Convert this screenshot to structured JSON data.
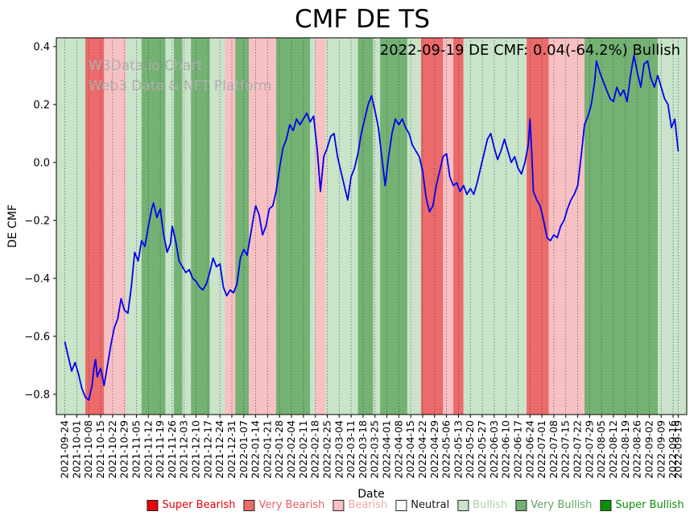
{
  "title": "CMF DE TS",
  "annotation": "2022-09-19 DE CMF: 0.04(-64.2%) Bullish",
  "watermark": {
    "line1": "W3Data.io Chart",
    "line2": "Web3 Data & NFT Platform"
  },
  "axes": {
    "xlabel": "Date",
    "ylabel": "DE CMF"
  },
  "legend": {
    "items": [
      {
        "label": "Super Bearish",
        "color": "#e8000b",
        "text_color": "#e8000b"
      },
      {
        "label": "Very Bearish",
        "color": "#ec6a6a",
        "text_color": "#e66060"
      },
      {
        "label": "Bearish",
        "color": "#f7c0c3",
        "text_color": "#f0a6aa"
      },
      {
        "label": "Neutral",
        "color": "#ffffff",
        "text_color": "#1a1a1a"
      },
      {
        "label": "Bullish",
        "color": "#c9e4c9",
        "text_color": "#abd4ab"
      },
      {
        "label": "Very Bullish",
        "color": "#74b274",
        "text_color": "#5ca65c"
      },
      {
        "label": "Super Bullish",
        "color": "#0a8f0a",
        "text_color": "#0a8f0a"
      }
    ]
  },
  "chart_data": {
    "type": "line",
    "title": "CMF DE TS",
    "xlabel": "Date",
    "ylabel": "DE CMF",
    "ylim": [
      -0.87,
      0.43
    ],
    "yticks": [
      0.4,
      0.2,
      0.0,
      -0.2,
      -0.4,
      -0.6,
      -0.8
    ],
    "x_start": "2021-09-24",
    "x_end": "2022-09-19",
    "x_pad_days": 5,
    "grid": "vertical-dotted",
    "line_color": "#0000ee",
    "xticks": [
      "2021-09-24",
      "2021-10-01",
      "2021-10-08",
      "2021-10-15",
      "2021-10-22",
      "2021-10-29",
      "2021-11-05",
      "2021-11-12",
      "2021-11-19",
      "2021-11-26",
      "2021-12-03",
      "2021-12-10",
      "2021-12-17",
      "2021-12-24",
      "2021-12-31",
      "2022-01-07",
      "2022-01-14",
      "2022-01-21",
      "2022-01-28",
      "2022-02-04",
      "2022-02-11",
      "2022-02-18",
      "2022-02-25",
      "2022-03-04",
      "2022-03-11",
      "2022-03-18",
      "2022-03-25",
      "2022-04-01",
      "2022-04-08",
      "2022-04-15",
      "2022-04-22",
      "2022-04-29",
      "2022-05-06",
      "2022-05-13",
      "2022-05-20",
      "2022-05-27",
      "2022-06-03",
      "2022-06-10",
      "2022-06-17",
      "2022-06-24",
      "2022-07-01",
      "2022-07-08",
      "2022-07-15",
      "2022-07-22",
      "2022-07-29",
      "2022-08-05",
      "2022-08-12",
      "2022-08-19",
      "2022-08-26",
      "2022-09-02",
      "2022-09-09",
      "2022-09-16",
      "2022-09-19"
    ],
    "band_colors": {
      "Super Bearish": "#e8000b",
      "Very Bearish": "#ec6a6a",
      "Bearish": "#f7c0c3",
      "Neutral": "#ffffff",
      "Bullish": "#c9e4c9",
      "Very Bullish": "#74b274",
      "Super Bullish": "#0a8f0a"
    },
    "bands": [
      {
        "start": "2021-09-19",
        "end": "2021-10-06",
        "category": "Bullish"
      },
      {
        "start": "2021-10-06",
        "end": "2021-10-17",
        "category": "Very Bearish"
      },
      {
        "start": "2021-10-17",
        "end": "2021-10-30",
        "category": "Bearish"
      },
      {
        "start": "2021-10-30",
        "end": "2021-11-08",
        "category": "Bullish"
      },
      {
        "start": "2021-11-08",
        "end": "2021-11-22",
        "category": "Very Bullish"
      },
      {
        "start": "2021-11-22",
        "end": "2021-11-27",
        "category": "Bullish"
      },
      {
        "start": "2021-11-27",
        "end": "2021-12-02",
        "category": "Very Bullish"
      },
      {
        "start": "2021-12-02",
        "end": "2021-12-07",
        "category": "Bullish"
      },
      {
        "start": "2021-12-07",
        "end": "2021-12-18",
        "category": "Very Bullish"
      },
      {
        "start": "2021-12-18",
        "end": "2021-12-27",
        "category": "Bullish"
      },
      {
        "start": "2021-12-27",
        "end": "2022-01-02",
        "category": "Bearish"
      },
      {
        "start": "2022-01-02",
        "end": "2022-01-10",
        "category": "Very Bullish"
      },
      {
        "start": "2022-01-10",
        "end": "2022-01-26",
        "category": "Bearish"
      },
      {
        "start": "2022-01-26",
        "end": "2022-02-15",
        "category": "Very Bullish"
      },
      {
        "start": "2022-02-15",
        "end": "2022-02-18",
        "category": "Bullish"
      },
      {
        "start": "2022-02-18",
        "end": "2022-02-24",
        "category": "Bearish"
      },
      {
        "start": "2022-02-24",
        "end": "2022-03-15",
        "category": "Bullish"
      },
      {
        "start": "2022-03-15",
        "end": "2022-03-24",
        "category": "Very Bullish"
      },
      {
        "start": "2022-03-24",
        "end": "2022-03-28",
        "category": "Bullish"
      },
      {
        "start": "2022-03-28",
        "end": "2022-04-13",
        "category": "Very Bullish"
      },
      {
        "start": "2022-04-13",
        "end": "2022-04-21",
        "category": "Bullish"
      },
      {
        "start": "2022-04-21",
        "end": "2022-05-04",
        "category": "Very Bearish"
      },
      {
        "start": "2022-05-04",
        "end": "2022-05-10",
        "category": "Bearish"
      },
      {
        "start": "2022-05-10",
        "end": "2022-05-16",
        "category": "Very Bearish"
      },
      {
        "start": "2022-05-16",
        "end": "2022-06-22",
        "category": "Bullish"
      },
      {
        "start": "2022-06-22",
        "end": "2022-07-05",
        "category": "Very Bearish"
      },
      {
        "start": "2022-07-05",
        "end": "2022-07-26",
        "category": "Bearish"
      },
      {
        "start": "2022-07-26",
        "end": "2022-09-07",
        "category": "Very Bullish"
      },
      {
        "start": "2022-09-07",
        "end": "2022-09-24",
        "category": "Bullish"
      }
    ],
    "series": [
      {
        "name": "DE CMF",
        "points": [
          [
            "2021-09-24",
            -0.62
          ],
          [
            "2021-09-26",
            -0.67
          ],
          [
            "2021-09-28",
            -0.72
          ],
          [
            "2021-09-30",
            -0.69
          ],
          [
            "2021-10-02",
            -0.73
          ],
          [
            "2021-10-04",
            -0.78
          ],
          [
            "2021-10-06",
            -0.81
          ],
          [
            "2021-10-08",
            -0.82
          ],
          [
            "2021-10-10",
            -0.77
          ],
          [
            "2021-10-11",
            -0.71
          ],
          [
            "2021-10-12",
            -0.68
          ],
          [
            "2021-10-13",
            -0.74
          ],
          [
            "2021-10-15",
            -0.71
          ],
          [
            "2021-10-17",
            -0.77
          ],
          [
            "2021-10-19",
            -0.7
          ],
          [
            "2021-10-21",
            -0.63
          ],
          [
            "2021-10-23",
            -0.57
          ],
          [
            "2021-10-25",
            -0.54
          ],
          [
            "2021-10-27",
            -0.47
          ],
          [
            "2021-10-29",
            -0.51
          ],
          [
            "2021-10-31",
            -0.52
          ],
          [
            "2021-11-02",
            -0.43
          ],
          [
            "2021-11-04",
            -0.31
          ],
          [
            "2021-11-06",
            -0.34
          ],
          [
            "2021-11-08",
            -0.27
          ],
          [
            "2021-11-10",
            -0.29
          ],
          [
            "2021-11-12",
            -0.22
          ],
          [
            "2021-11-14",
            -0.16
          ],
          [
            "2021-11-15",
            -0.14
          ],
          [
            "2021-11-17",
            -0.19
          ],
          [
            "2021-11-19",
            -0.16
          ],
          [
            "2021-11-21",
            -0.25
          ],
          [
            "2021-11-23",
            -0.31
          ],
          [
            "2021-11-25",
            -0.28
          ],
          [
            "2021-11-26",
            -0.22
          ],
          [
            "2021-11-28",
            -0.27
          ],
          [
            "2021-11-30",
            -0.34
          ],
          [
            "2021-12-02",
            -0.36
          ],
          [
            "2021-12-04",
            -0.38
          ],
          [
            "2021-12-06",
            -0.37
          ],
          [
            "2021-12-08",
            -0.4
          ],
          [
            "2021-12-10",
            -0.41
          ],
          [
            "2021-12-12",
            -0.43
          ],
          [
            "2021-12-14",
            -0.44
          ],
          [
            "2021-12-16",
            -0.42
          ],
          [
            "2021-12-18",
            -0.38
          ],
          [
            "2021-12-20",
            -0.33
          ],
          [
            "2021-12-22",
            -0.36
          ],
          [
            "2021-12-24",
            -0.35
          ],
          [
            "2021-12-26",
            -0.43
          ],
          [
            "2021-12-28",
            -0.46
          ],
          [
            "2021-12-30",
            -0.44
          ],
          [
            "2022-01-01",
            -0.45
          ],
          [
            "2022-01-03",
            -0.42
          ],
          [
            "2022-01-05",
            -0.33
          ],
          [
            "2022-01-07",
            -0.3
          ],
          [
            "2022-01-09",
            -0.32
          ],
          [
            "2022-01-11",
            -0.25
          ],
          [
            "2022-01-13",
            -0.18
          ],
          [
            "2022-01-14",
            -0.15
          ],
          [
            "2022-01-16",
            -0.18
          ],
          [
            "2022-01-18",
            -0.25
          ],
          [
            "2022-01-20",
            -0.22
          ],
          [
            "2022-01-22",
            -0.16
          ],
          [
            "2022-01-24",
            -0.15
          ],
          [
            "2022-01-26",
            -0.1
          ],
          [
            "2022-01-28",
            -0.02
          ],
          [
            "2022-01-30",
            0.05
          ],
          [
            "2022-02-01",
            0.08
          ],
          [
            "2022-02-03",
            0.13
          ],
          [
            "2022-02-05",
            0.11
          ],
          [
            "2022-02-07",
            0.15
          ],
          [
            "2022-02-09",
            0.13
          ],
          [
            "2022-02-11",
            0.15
          ],
          [
            "2022-02-13",
            0.17
          ],
          [
            "2022-02-15",
            0.14
          ],
          [
            "2022-02-17",
            0.16
          ],
          [
            "2022-02-19",
            0.05
          ],
          [
            "2022-02-20",
            -0.02
          ],
          [
            "2022-02-21",
            -0.1
          ],
          [
            "2022-02-23",
            0.02
          ],
          [
            "2022-02-25",
            0.05
          ],
          [
            "2022-02-27",
            0.09
          ],
          [
            "2022-03-01",
            0.1
          ],
          [
            "2022-03-03",
            0.02
          ],
          [
            "2022-03-05",
            -0.03
          ],
          [
            "2022-03-07",
            -0.08
          ],
          [
            "2022-03-09",
            -0.13
          ],
          [
            "2022-03-11",
            -0.05
          ],
          [
            "2022-03-13",
            -0.02
          ],
          [
            "2022-03-15",
            0.03
          ],
          [
            "2022-03-17",
            0.1
          ],
          [
            "2022-03-19",
            0.15
          ],
          [
            "2022-03-21",
            0.2
          ],
          [
            "2022-03-23",
            0.23
          ],
          [
            "2022-03-25",
            0.18
          ],
          [
            "2022-03-27",
            0.12
          ],
          [
            "2022-03-29",
            0.02
          ],
          [
            "2022-03-31",
            -0.08
          ],
          [
            "2022-04-02",
            0.02
          ],
          [
            "2022-04-04",
            0.1
          ],
          [
            "2022-04-06",
            0.15
          ],
          [
            "2022-04-08",
            0.13
          ],
          [
            "2022-04-10",
            0.15
          ],
          [
            "2022-04-12",
            0.12
          ],
          [
            "2022-04-14",
            0.1
          ],
          [
            "2022-04-16",
            0.06
          ],
          [
            "2022-04-18",
            0.04
          ],
          [
            "2022-04-20",
            0.02
          ],
          [
            "2022-04-22",
            -0.03
          ],
          [
            "2022-04-24",
            -0.12
          ],
          [
            "2022-04-26",
            -0.17
          ],
          [
            "2022-04-28",
            -0.15
          ],
          [
            "2022-04-30",
            -0.08
          ],
          [
            "2022-05-02",
            -0.03
          ],
          [
            "2022-05-04",
            0.02
          ],
          [
            "2022-05-06",
            0.03
          ],
          [
            "2022-05-08",
            -0.05
          ],
          [
            "2022-05-10",
            -0.08
          ],
          [
            "2022-05-12",
            -0.07
          ],
          [
            "2022-05-14",
            -0.1
          ],
          [
            "2022-05-16",
            -0.08
          ],
          [
            "2022-05-18",
            -0.11
          ],
          [
            "2022-05-20",
            -0.09
          ],
          [
            "2022-05-22",
            -0.11
          ],
          [
            "2022-05-24",
            -0.07
          ],
          [
            "2022-05-26",
            -0.02
          ],
          [
            "2022-05-28",
            0.03
          ],
          [
            "2022-05-30",
            0.08
          ],
          [
            "2022-06-01",
            0.1
          ],
          [
            "2022-06-03",
            0.05
          ],
          [
            "2022-06-05",
            0.01
          ],
          [
            "2022-06-07",
            0.04
          ],
          [
            "2022-06-09",
            0.08
          ],
          [
            "2022-06-11",
            0.04
          ],
          [
            "2022-06-13",
            0.0
          ],
          [
            "2022-06-15",
            0.02
          ],
          [
            "2022-06-17",
            -0.02
          ],
          [
            "2022-06-19",
            -0.04
          ],
          [
            "2022-06-21",
            0.0
          ],
          [
            "2022-06-23",
            0.06
          ],
          [
            "2022-06-24",
            0.15
          ],
          [
            "2022-06-25",
            0.04
          ],
          [
            "2022-06-26",
            -0.1
          ],
          [
            "2022-06-28",
            -0.13
          ],
          [
            "2022-06-30",
            -0.15
          ],
          [
            "2022-07-02",
            -0.2
          ],
          [
            "2022-07-04",
            -0.26
          ],
          [
            "2022-07-06",
            -0.27
          ],
          [
            "2022-07-08",
            -0.25
          ],
          [
            "2022-07-10",
            -0.26
          ],
          [
            "2022-07-12",
            -0.22
          ],
          [
            "2022-07-14",
            -0.2
          ],
          [
            "2022-07-16",
            -0.16
          ],
          [
            "2022-07-18",
            -0.13
          ],
          [
            "2022-07-20",
            -0.11
          ],
          [
            "2022-07-22",
            -0.08
          ],
          [
            "2022-07-24",
            0.02
          ],
          [
            "2022-07-26",
            0.13
          ],
          [
            "2022-07-28",
            0.16
          ],
          [
            "2022-07-30",
            0.2
          ],
          [
            "2022-08-01",
            0.28
          ],
          [
            "2022-08-02",
            0.35
          ],
          [
            "2022-08-04",
            0.31
          ],
          [
            "2022-08-06",
            0.28
          ],
          [
            "2022-08-08",
            0.25
          ],
          [
            "2022-08-10",
            0.22
          ],
          [
            "2022-08-12",
            0.21
          ],
          [
            "2022-08-14",
            0.26
          ],
          [
            "2022-08-16",
            0.23
          ],
          [
            "2022-08-18",
            0.25
          ],
          [
            "2022-08-20",
            0.21
          ],
          [
            "2022-08-22",
            0.3
          ],
          [
            "2022-08-24",
            0.37
          ],
          [
            "2022-08-26",
            0.31
          ],
          [
            "2022-08-28",
            0.26
          ],
          [
            "2022-08-30",
            0.34
          ],
          [
            "2022-09-01",
            0.35
          ],
          [
            "2022-09-03",
            0.29
          ],
          [
            "2022-09-05",
            0.26
          ],
          [
            "2022-09-07",
            0.3
          ],
          [
            "2022-09-09",
            0.26
          ],
          [
            "2022-09-11",
            0.22
          ],
          [
            "2022-09-13",
            0.2
          ],
          [
            "2022-09-15",
            0.12
          ],
          [
            "2022-09-17",
            0.15
          ],
          [
            "2022-09-19",
            0.04
          ]
        ]
      }
    ]
  }
}
